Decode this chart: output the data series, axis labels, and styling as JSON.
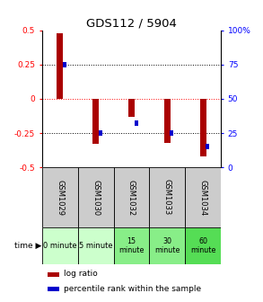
{
  "title": "GDS112 / 5904",
  "samples": [
    "GSM1029",
    "GSM1030",
    "GSM1032",
    "GSM1033",
    "GSM1034"
  ],
  "time_labels": [
    "0 minute",
    "5 minute",
    "15\nminute",
    "30\nminute",
    "60\nminute"
  ],
  "time_colors": [
    "#ccffcc",
    "#ccffcc",
    "#88ee88",
    "#88ee88",
    "#55dd55"
  ],
  "log_ratios": [
    0.48,
    -0.33,
    -0.13,
    -0.32,
    -0.42
  ],
  "pct_values_display": [
    75,
    25,
    32,
    25,
    15
  ],
  "bar_color_red": "#aa0000",
  "bar_color_blue": "#0000cc",
  "ylim": [
    -0.5,
    0.5
  ],
  "yticks_left": [
    -0.5,
    -0.25,
    0,
    0.25,
    0.5
  ],
  "yticks_right": [
    0,
    25,
    50,
    75,
    100
  ],
  "legend_red": "log ratio",
  "legend_blue": "percentile rank within the sample",
  "bg_color": "#ffffff",
  "sample_bg": "#cccccc",
  "red_bar_width": 0.18,
  "blue_bar_width": 0.1
}
